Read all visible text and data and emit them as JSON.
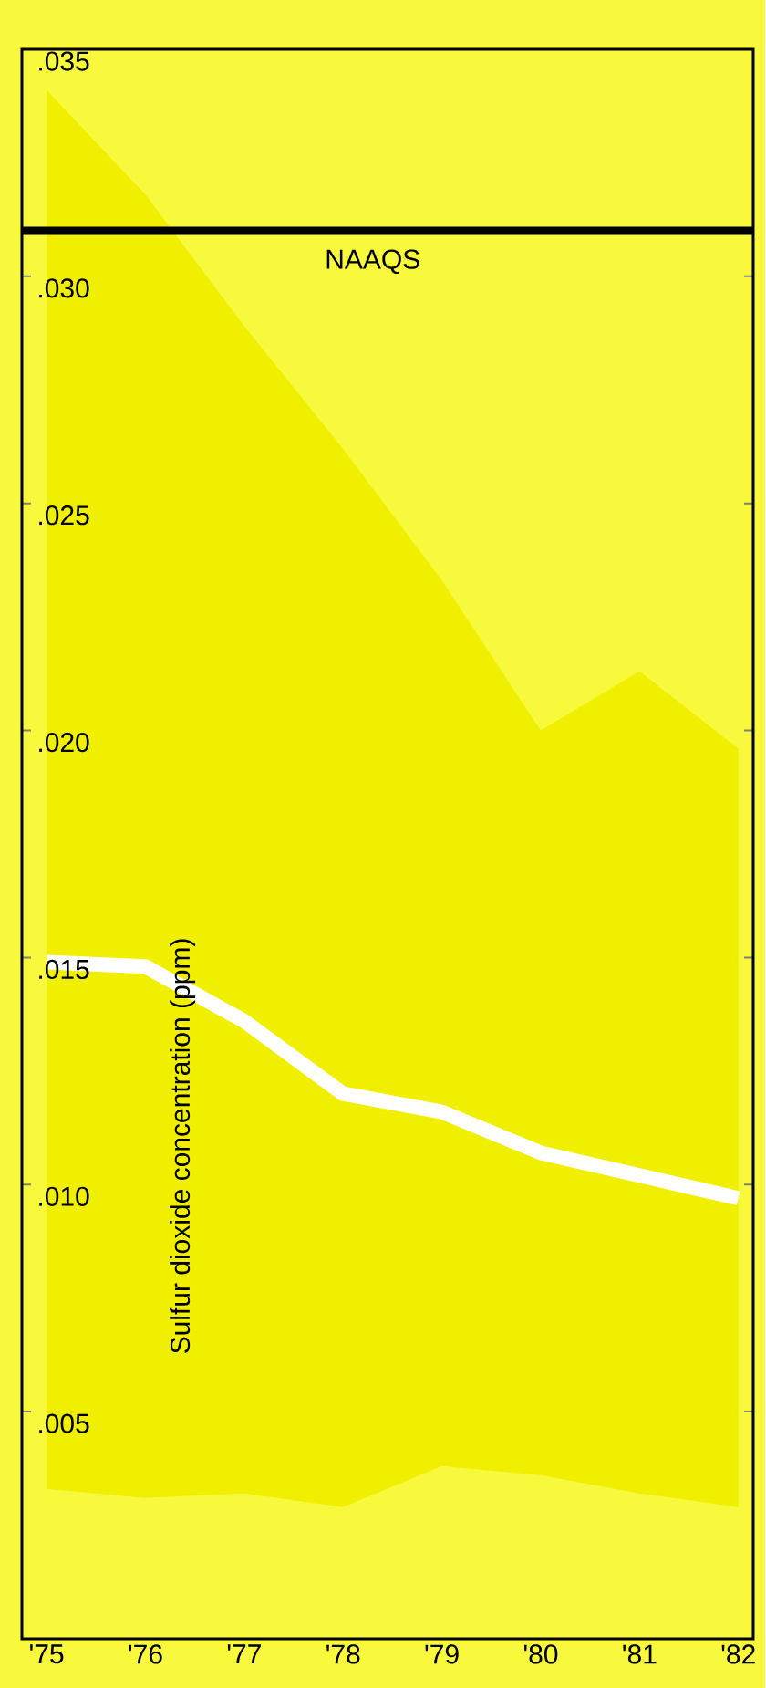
{
  "chart_data": {
    "type": "line",
    "ylabel": "Sulfur dioxide concentration (ppm)",
    "categories": [
      "'75",
      "'76",
      "'77",
      "'78",
      "'79",
      "'80",
      "'81",
      "'82"
    ],
    "series": [
      {
        "color": "#ffffff",
        "values": [
          0.0149,
          0.0148,
          0.0136,
          0.012,
          0.0116,
          0.0107,
          0.0102,
          0.0097
        ],
        "lower": [
          0.0033,
          0.0031,
          0.0032,
          0.0029,
          0.0038,
          0.0036,
          0.0032,
          0.0029
        ],
        "upper": [
          0.0341,
          0.0318,
          0.0289,
          0.0262,
          0.0233,
          0.02,
          0.0213,
          0.0196
        ]
      }
    ],
    "ylim": [
      0,
      0.035
    ],
    "yticks": [
      {
        "value": 0.005,
        "label": ".005"
      },
      {
        "value": 0.01,
        "label": ".010"
      },
      {
        "value": 0.015,
        "label": ".015"
      },
      {
        "value": 0.02,
        "label": ".020"
      },
      {
        "value": 0.025,
        "label": ".025"
      },
      {
        "value": 0.03,
        "label": ".030"
      },
      {
        "value": 0.035,
        "label": ".035"
      }
    ],
    "ref_lines": [
      {
        "axis": "y",
        "value": 0.031,
        "label": "NAAQS",
        "color": "#000000"
      }
    ]
  }
}
